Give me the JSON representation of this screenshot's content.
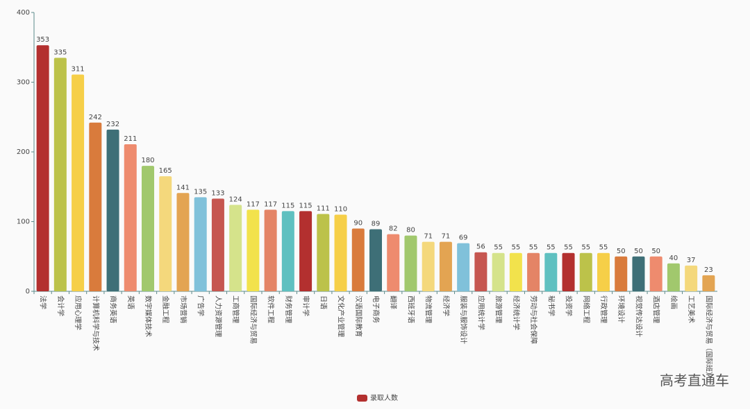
{
  "chart_data": {
    "type": "bar",
    "categories": [
      "法学",
      "会计学",
      "应用心理学",
      "计算机科学与技术",
      "商务英语",
      "英语",
      "数字媒体技术",
      "金融工程",
      "市场营销",
      "广告学",
      "人力资源管理",
      "工商管理",
      "国际经济与贸易",
      "软件工程",
      "财务管理",
      "审计学",
      "日语",
      "文化产业管理",
      "汉语国际教育",
      "电子商务",
      "翻译",
      "西班牙语",
      "物流管理",
      "经济学",
      "服装与服饰设计",
      "应用统计学",
      "旅游管理",
      "经济统计学",
      "劳动与社会保障",
      "秘书学",
      "投资学",
      "网络工程",
      "行政管理",
      "环境设计",
      "视觉传达设计",
      "酒店管理",
      "绘画",
      "工艺美术",
      "国际经济与贸易（国际班）"
    ],
    "series": [
      {
        "name": "录取人数",
        "color": "#b3302f",
        "values": [
          353,
          335,
          311,
          242,
          232,
          211,
          180,
          165,
          141,
          135,
          133,
          124,
          117,
          117,
          115,
          115,
          111,
          110,
          90,
          89,
          82,
          80,
          71,
          71,
          69,
          56,
          55,
          55,
          55,
          55,
          55,
          55,
          55,
          50,
          50,
          50,
          40,
          37,
          23
        ],
        "colors": [
          "#b3302f",
          "#bcc24a",
          "#f6cf48",
          "#d97b3c",
          "#3e6f77",
          "#ee8b6e",
          "#a1c86d",
          "#f4d87c",
          "#e3a452",
          "#80c1da",
          "#c65650",
          "#d5e38b",
          "#f2e24c",
          "#e48466",
          "#5fc0c0"
        ]
      }
    ],
    "ylim": [
      0,
      400
    ],
    "yticks": [
      0,
      100,
      200,
      300,
      400
    ],
    "grid": false,
    "legend_position": "bottom",
    "watermark": "高考直通车"
  }
}
